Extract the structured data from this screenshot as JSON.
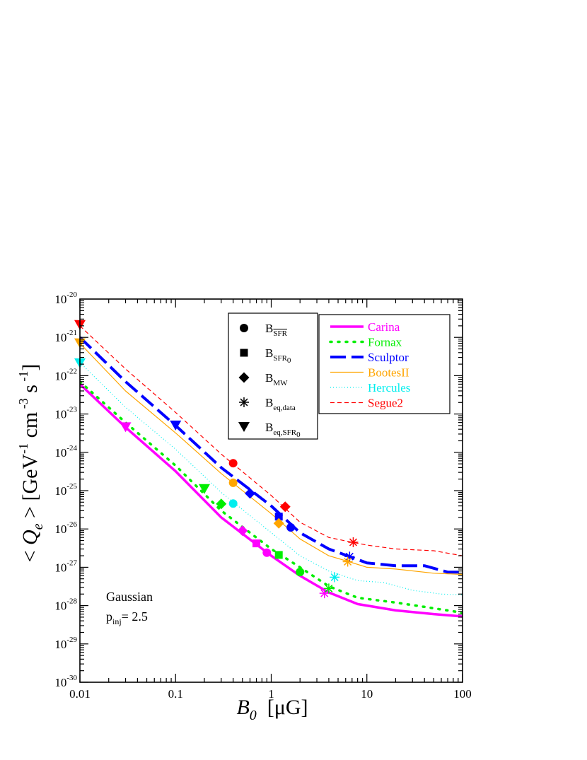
{
  "chart_data": {
    "type": "line",
    "x_scale": "log",
    "y_scale": "log",
    "xlim": [
      0.01,
      100
    ],
    "ylim": [
      1e-30,
      1e-20
    ],
    "x_ticks": [
      {
        "value": 0.01,
        "label": "0.01"
      },
      {
        "value": 0.1,
        "label": "0.1"
      },
      {
        "value": 1,
        "label": "1"
      },
      {
        "value": 10,
        "label": "10"
      },
      {
        "value": 100,
        "label": "100"
      }
    ],
    "y_ticks": [
      {
        "value": 1e-30,
        "base": "10",
        "exp": "-30"
      },
      {
        "value": 1e-29,
        "base": "10",
        "exp": "-29"
      },
      {
        "value": 1e-28,
        "base": "10",
        "exp": "-28"
      },
      {
        "value": 1e-27,
        "base": "10",
        "exp": "-27"
      },
      {
        "value": 1e-26,
        "base": "10",
        "exp": "-26"
      },
      {
        "value": 1e-25,
        "base": "10",
        "exp": "-25"
      },
      {
        "value": 1e-24,
        "base": "10",
        "exp": "-24"
      },
      {
        "value": 1e-23,
        "base": "10",
        "exp": "-23"
      },
      {
        "value": 1e-22,
        "base": "10",
        "exp": "-22"
      },
      {
        "value": 1e-21,
        "base": "10",
        "exp": "-21"
      },
      {
        "value": 1e-20,
        "base": "10",
        "exp": "-20"
      }
    ],
    "xlabel": {
      "main": "B",
      "sub": "0",
      "unit": "[μG]"
    },
    "ylabel": {
      "lt": "<",
      "q": "Q",
      "sub": "e",
      "gt": ">",
      "unit1": "[GeV",
      "e1": "-1",
      "unit2": "cm",
      "e2": "-3",
      "unit3": "s",
      "e3": "-1",
      "close": "]"
    },
    "annotation": {
      "line1": "Gaussian",
      "line2_main": "p",
      "line2_sub": "inj",
      "line2_rest": "= 2.5"
    },
    "series": [
      {
        "name": "Carina",
        "color": "#ff00ff",
        "dash": "solid",
        "width": 3.5,
        "x": [
          0.01,
          0.03,
          0.1,
          0.3,
          1,
          2,
          4,
          8,
          20,
          50,
          100
        ],
        "y": [
          6e-23,
          4.5e-24,
          3.2e-25,
          2e-26,
          2e-27,
          6e-28,
          2.2e-28,
          1.1e-28,
          7.5e-29,
          6e-29,
          5.2e-29
        ]
      },
      {
        "name": "Fornax",
        "color": "#00ee00",
        "dash": "dot",
        "width": 3.5,
        "x": [
          0.01,
          0.03,
          0.1,
          0.3,
          1,
          2,
          4,
          8,
          20,
          50,
          100
        ],
        "y": [
          7e-23,
          6e-24,
          4.5e-25,
          3e-26,
          3e-27,
          1e-27,
          3.2e-28,
          1.6e-28,
          1.2e-28,
          8.5e-29,
          6.5e-29
        ]
      },
      {
        "name": "Sculptor",
        "color": "#0000ff",
        "dash": "longdash",
        "width": 4,
        "x": [
          0.01,
          0.03,
          0.1,
          0.3,
          1,
          2,
          4,
          6.6,
          10,
          20,
          40,
          70,
          100
        ],
        "y": [
          1e-21,
          7e-23,
          5e-24,
          4e-25,
          4e-26,
          8e-27,
          3e-27,
          1.9e-27,
          1.3e-27,
          1.1e-27,
          1.1e-27,
          7.5e-28,
          7.5e-28
        ]
      },
      {
        "name": "BootesII",
        "color": "#ffa500",
        "dash": "solid",
        "width": 1.2,
        "x": [
          0.01,
          0.03,
          0.1,
          0.3,
          1,
          2,
          4,
          6.5,
          10,
          20,
          50,
          100
        ],
        "y": [
          7e-22,
          4e-23,
          3.2e-24,
          2.8e-25,
          2.5e-26,
          5.5e-27,
          2e-27,
          1.4e-27,
          1e-27,
          9e-28,
          7e-28,
          6.5e-28
        ]
      },
      {
        "name": "Hercules",
        "color": "#00eeee",
        "dash": "finedot",
        "width": 1.2,
        "x": [
          0.01,
          0.03,
          0.1,
          0.3,
          1,
          2,
          4,
          8,
          15,
          30,
          60,
          100
        ],
        "y": [
          2.2e-22,
          1.5e-23,
          1.2e-24,
          9e-26,
          8e-27,
          2e-27,
          8e-28,
          4.5e-28,
          4e-28,
          2.5e-28,
          2e-28,
          1.9e-28
        ]
      },
      {
        "name": "Segue2",
        "color": "#ff0000",
        "dash": "shortdash",
        "width": 1.2,
        "x": [
          0.01,
          0.03,
          0.1,
          0.3,
          1,
          2,
          4,
          7,
          10,
          20,
          50,
          100
        ],
        "y": [
          2e-21,
          1.5e-22,
          1.1e-23,
          9e-25,
          7.5e-26,
          1.5e-26,
          6e-27,
          4.5e-27,
          3.8e-27,
          3e-27,
          2.7e-27,
          2e-27
        ]
      }
    ],
    "marker_legend": [
      {
        "symbol": "circle",
        "main": "B",
        "sub": "SFR",
        "overline": true
      },
      {
        "symbol": "square",
        "main": "B",
        "sub": "SFR",
        "sub2": "0"
      },
      {
        "symbol": "diamond",
        "main": "B",
        "sub": "MW"
      },
      {
        "symbol": "asterisk",
        "main": "B",
        "sub": "eq,data"
      },
      {
        "symbol": "triangle-down",
        "main": "B",
        "sub": "eq,SFR",
        "sub2": "0"
      }
    ],
    "markers": [
      {
        "series": "Carina",
        "symbol": "triangle-down",
        "x": 0.03,
        "y": 4.5e-24
      },
      {
        "series": "Carina",
        "symbol": "diamond",
        "x": 0.5,
        "y": 9e-27
      },
      {
        "series": "Carina",
        "symbol": "square",
        "x": 0.7,
        "y": 4.2e-27
      },
      {
        "series": "Carina",
        "symbol": "circle",
        "x": 0.9,
        "y": 2.4e-27
      },
      {
        "series": "Carina",
        "symbol": "asterisk",
        "x": 3.6,
        "y": 2.1e-28
      },
      {
        "series": "Fornax",
        "symbol": "triangle-down",
        "x": 0.2,
        "y": 1.1e-25
      },
      {
        "series": "Fornax",
        "symbol": "diamond",
        "x": 0.3,
        "y": 4.5e-26
      },
      {
        "series": "Fornax",
        "symbol": "square",
        "x": 1.2,
        "y": 2.1e-27
      },
      {
        "series": "Fornax",
        "symbol": "circle",
        "x": 2,
        "y": 7.5e-28
      },
      {
        "series": "Fornax",
        "symbol": "asterisk",
        "x": 4,
        "y": 2.8e-28
      },
      {
        "series": "Sculptor",
        "symbol": "triangle-down",
        "x": 0.1,
        "y": 5e-24
      },
      {
        "series": "Sculptor",
        "symbol": "diamond",
        "x": 0.6,
        "y": 8.5e-26
      },
      {
        "series": "Sculptor",
        "symbol": "square",
        "x": 1.2,
        "y": 2.1e-26
      },
      {
        "series": "Sculptor",
        "symbol": "circle",
        "x": 1.6,
        "y": 1.1e-26
      },
      {
        "series": "Sculptor",
        "symbol": "asterisk",
        "x": 6.6,
        "y": 1.9e-27
      },
      {
        "series": "BootesII",
        "symbol": "triangle-down",
        "x": 0.01,
        "y": 7e-22
      },
      {
        "series": "BootesII",
        "symbol": "circle",
        "x": 0.4,
        "y": 1.6e-25
      },
      {
        "series": "BootesII",
        "symbol": "diamond",
        "x": 1.2,
        "y": 1.4e-26
      },
      {
        "series": "BootesII",
        "symbol": "asterisk",
        "x": 6.3,
        "y": 1.4e-27
      },
      {
        "series": "Hercules",
        "symbol": "triangle-down",
        "x": 0.01,
        "y": 2.1e-22
      },
      {
        "series": "Hercules",
        "symbol": "circle",
        "x": 0.4,
        "y": 4.6e-26
      },
      {
        "series": "Hercules",
        "symbol": "asterisk",
        "x": 4.6,
        "y": 5.5e-28
      },
      {
        "series": "Segue2",
        "symbol": "triangle-down",
        "x": 0.01,
        "y": 2.1e-21
      },
      {
        "series": "Segue2",
        "symbol": "circle",
        "x": 0.4,
        "y": 5.2e-25
      },
      {
        "series": "Segue2",
        "symbol": "diamond",
        "x": 1.4,
        "y": 3.8e-26
      },
      {
        "series": "Segue2",
        "symbol": "asterisk",
        "x": 7.2,
        "y": 4.5e-27
      }
    ]
  }
}
